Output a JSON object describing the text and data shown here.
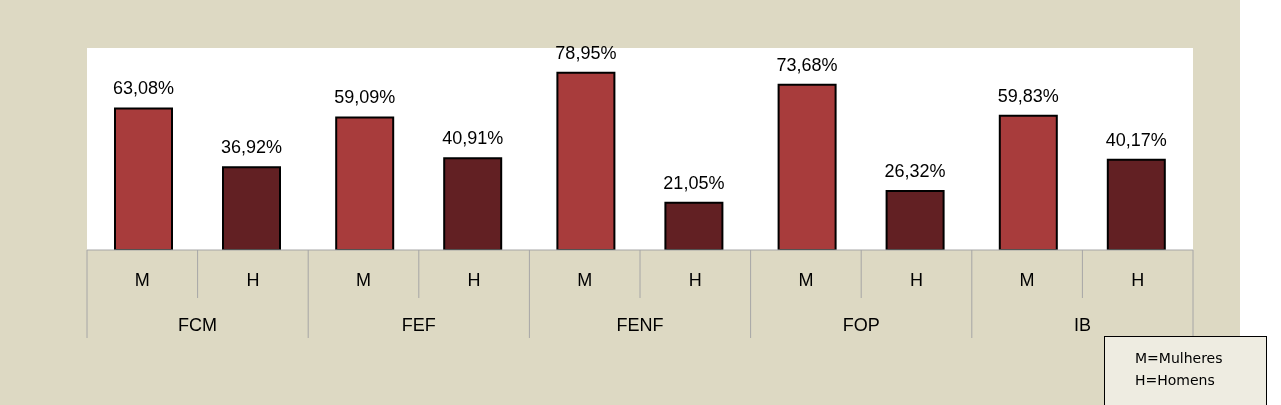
{
  "chart_data": {
    "type": "bar",
    "categories": [
      "FCM",
      "FEF",
      "FENF",
      "FOP",
      "IB"
    ],
    "series": [
      {
        "name": "M",
        "color": "#a83c3c",
        "values": [
          63.08,
          59.09,
          78.95,
          73.68,
          59.83
        ],
        "value_labels": [
          "63,08%",
          "59,09%",
          "78,95%",
          "73,68%",
          "59,83%"
        ]
      },
      {
        "name": "H",
        "color": "#622023",
        "values": [
          36.92,
          40.91,
          21.05,
          26.32,
          40.17
        ],
        "value_labels": [
          "36,92%",
          "40,91%",
          "21,05%",
          "26,32%",
          "40,17%"
        ]
      }
    ],
    "ylim": [
      0,
      90
    ],
    "tick_labels": "x",
    "annotations": [
      "M=Mulheres",
      "H=Homens"
    ]
  }
}
